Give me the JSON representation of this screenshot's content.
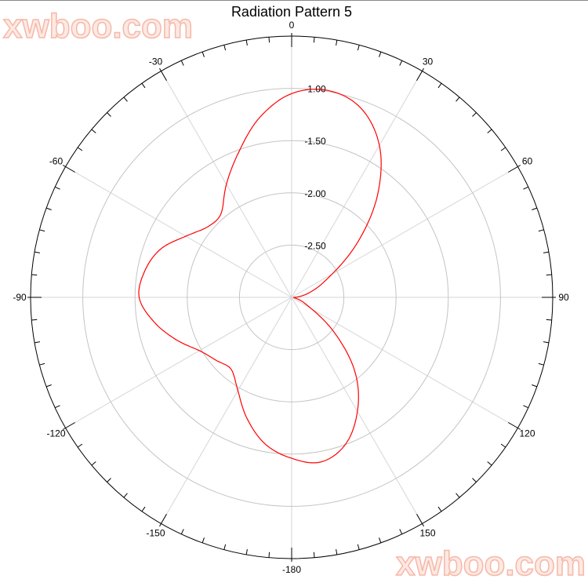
{
  "chart_data": {
    "type": "line",
    "subtype": "polar",
    "title": "Radiation Pattern 5",
    "angle_direction": "clockwise",
    "angle_zero": "top",
    "angle_ticks": [
      0,
      30,
      60,
      90,
      120,
      150,
      -180,
      -150,
      -120,
      -90,
      -60,
      -30
    ],
    "angle_minor_step": 5,
    "radial_range": [
      -3.0,
      -0.5
    ],
    "radial_ticks": [
      "-1.00",
      "-1.50",
      "-2.00",
      "-2.50"
    ],
    "radial_tick_values": [
      -1.0,
      -1.5,
      -2.0,
      -2.5
    ],
    "grid": true,
    "series": [
      {
        "color": "#ff0000",
        "angles": [
          -180,
          -170,
          -160,
          -150,
          -140,
          -130,
          -120,
          -110,
          -100,
          -90,
          -80,
          -70,
          -60,
          -50,
          -40,
          -30,
          -20,
          -10,
          0,
          10,
          20,
          30,
          40,
          50,
          60,
          70,
          80,
          90,
          100,
          110,
          120,
          130,
          140,
          150,
          160,
          170
        ],
        "values": [
          -1.46,
          -1.57,
          -1.76,
          -1.97,
          -2.1,
          -2.06,
          -1.98,
          -1.82,
          -1.66,
          -1.54,
          -1.57,
          -1.66,
          -1.83,
          -1.95,
          -1.95,
          -1.75,
          -1.52,
          -1.25,
          -1.05,
          -0.99,
          -1.07,
          -1.32,
          -1.72,
          -2.17,
          -2.55,
          -2.75,
          -2.88,
          -2.97,
          -2.97,
          -2.9,
          -2.78,
          -2.45,
          -2.05,
          -1.74,
          -1.5,
          -1.4
        ]
      }
    ]
  },
  "watermark": "xwboo.com"
}
